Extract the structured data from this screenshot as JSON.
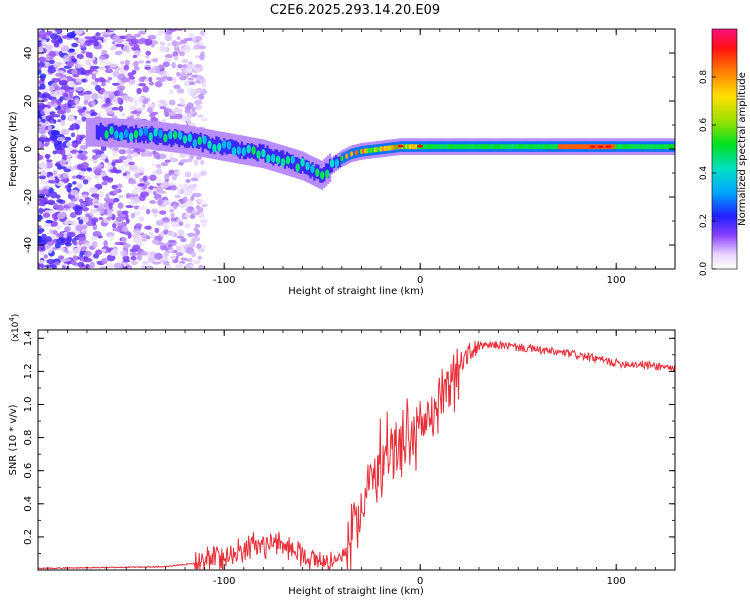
{
  "title": "C2E6.2025.293.14.20.E09",
  "chart_data": [
    {
      "type": "heatmap",
      "title": "C2E6.2025.293.14.20.E09",
      "xlabel": "Height of straight line (km)",
      "ylabel": "Frequency (Hz)",
      "xlim": [
        -195,
        130
      ],
      "ylim": [
        -50,
        50
      ],
      "x_ticks": [
        "-100",
        "0",
        "100"
      ],
      "y_ticks": [
        "40",
        "20",
        "0",
        "-20",
        "-40"
      ],
      "colorbar": {
        "label": "Normalized spectral amplitude",
        "range": [
          0,
          1
        ],
        "ticks": [
          "0.0",
          "0.2",
          "0.4",
          "0.6",
          "0.8"
        ]
      },
      "ridge": {
        "x": [
          -160,
          -140,
          -120,
          -100,
          -80,
          -60,
          -50,
          -45,
          -40,
          -35,
          -30,
          -20,
          -10,
          0,
          10,
          50,
          90,
          130
        ],
        "y": [
          7,
          6,
          4,
          1,
          -2,
          -7,
          -11,
          -7,
          -4,
          -2,
          -1,
          0,
          1,
          1,
          1,
          1,
          1,
          1
        ]
      }
    },
    {
      "type": "line",
      "xlabel": "Height of straight line (km)",
      "ylabel": "SNR (10 * v/v)",
      "multiplier": "(x10",
      "multiplier_exp": "4",
      "multiplier_close": ")",
      "xlim": [
        -195,
        130
      ],
      "ylim": [
        0,
        1.45
      ],
      "x_ticks": [
        "-100",
        "0",
        "100"
      ],
      "y_ticks": [
        "0.2",
        "0.4",
        "0.6",
        "0.8",
        "1.0",
        "1.2",
        "1.4"
      ],
      "series": [
        {
          "name": "SNR",
          "color": "#e8303a",
          "x": [
            -195,
            -160,
            -130,
            -115,
            -105,
            -95,
            -85,
            -75,
            -65,
            -55,
            -45,
            -40,
            -36,
            -33,
            -30,
            -25,
            -20,
            -15,
            -10,
            -5,
            0,
            5,
            10,
            15,
            20,
            25,
            30,
            40,
            60,
            80,
            100,
            115,
            130
          ],
          "y": [
            0.01,
            0.015,
            0.02,
            0.04,
            0.07,
            0.1,
            0.15,
            0.16,
            0.13,
            0.06,
            0.05,
            0.08,
            0.15,
            0.3,
            0.45,
            0.55,
            0.65,
            0.72,
            0.76,
            0.8,
            0.86,
            0.95,
            1.05,
            1.15,
            1.25,
            1.31,
            1.35,
            1.36,
            1.33,
            1.3,
            1.25,
            1.24,
            1.22
          ]
        }
      ]
    }
  ]
}
